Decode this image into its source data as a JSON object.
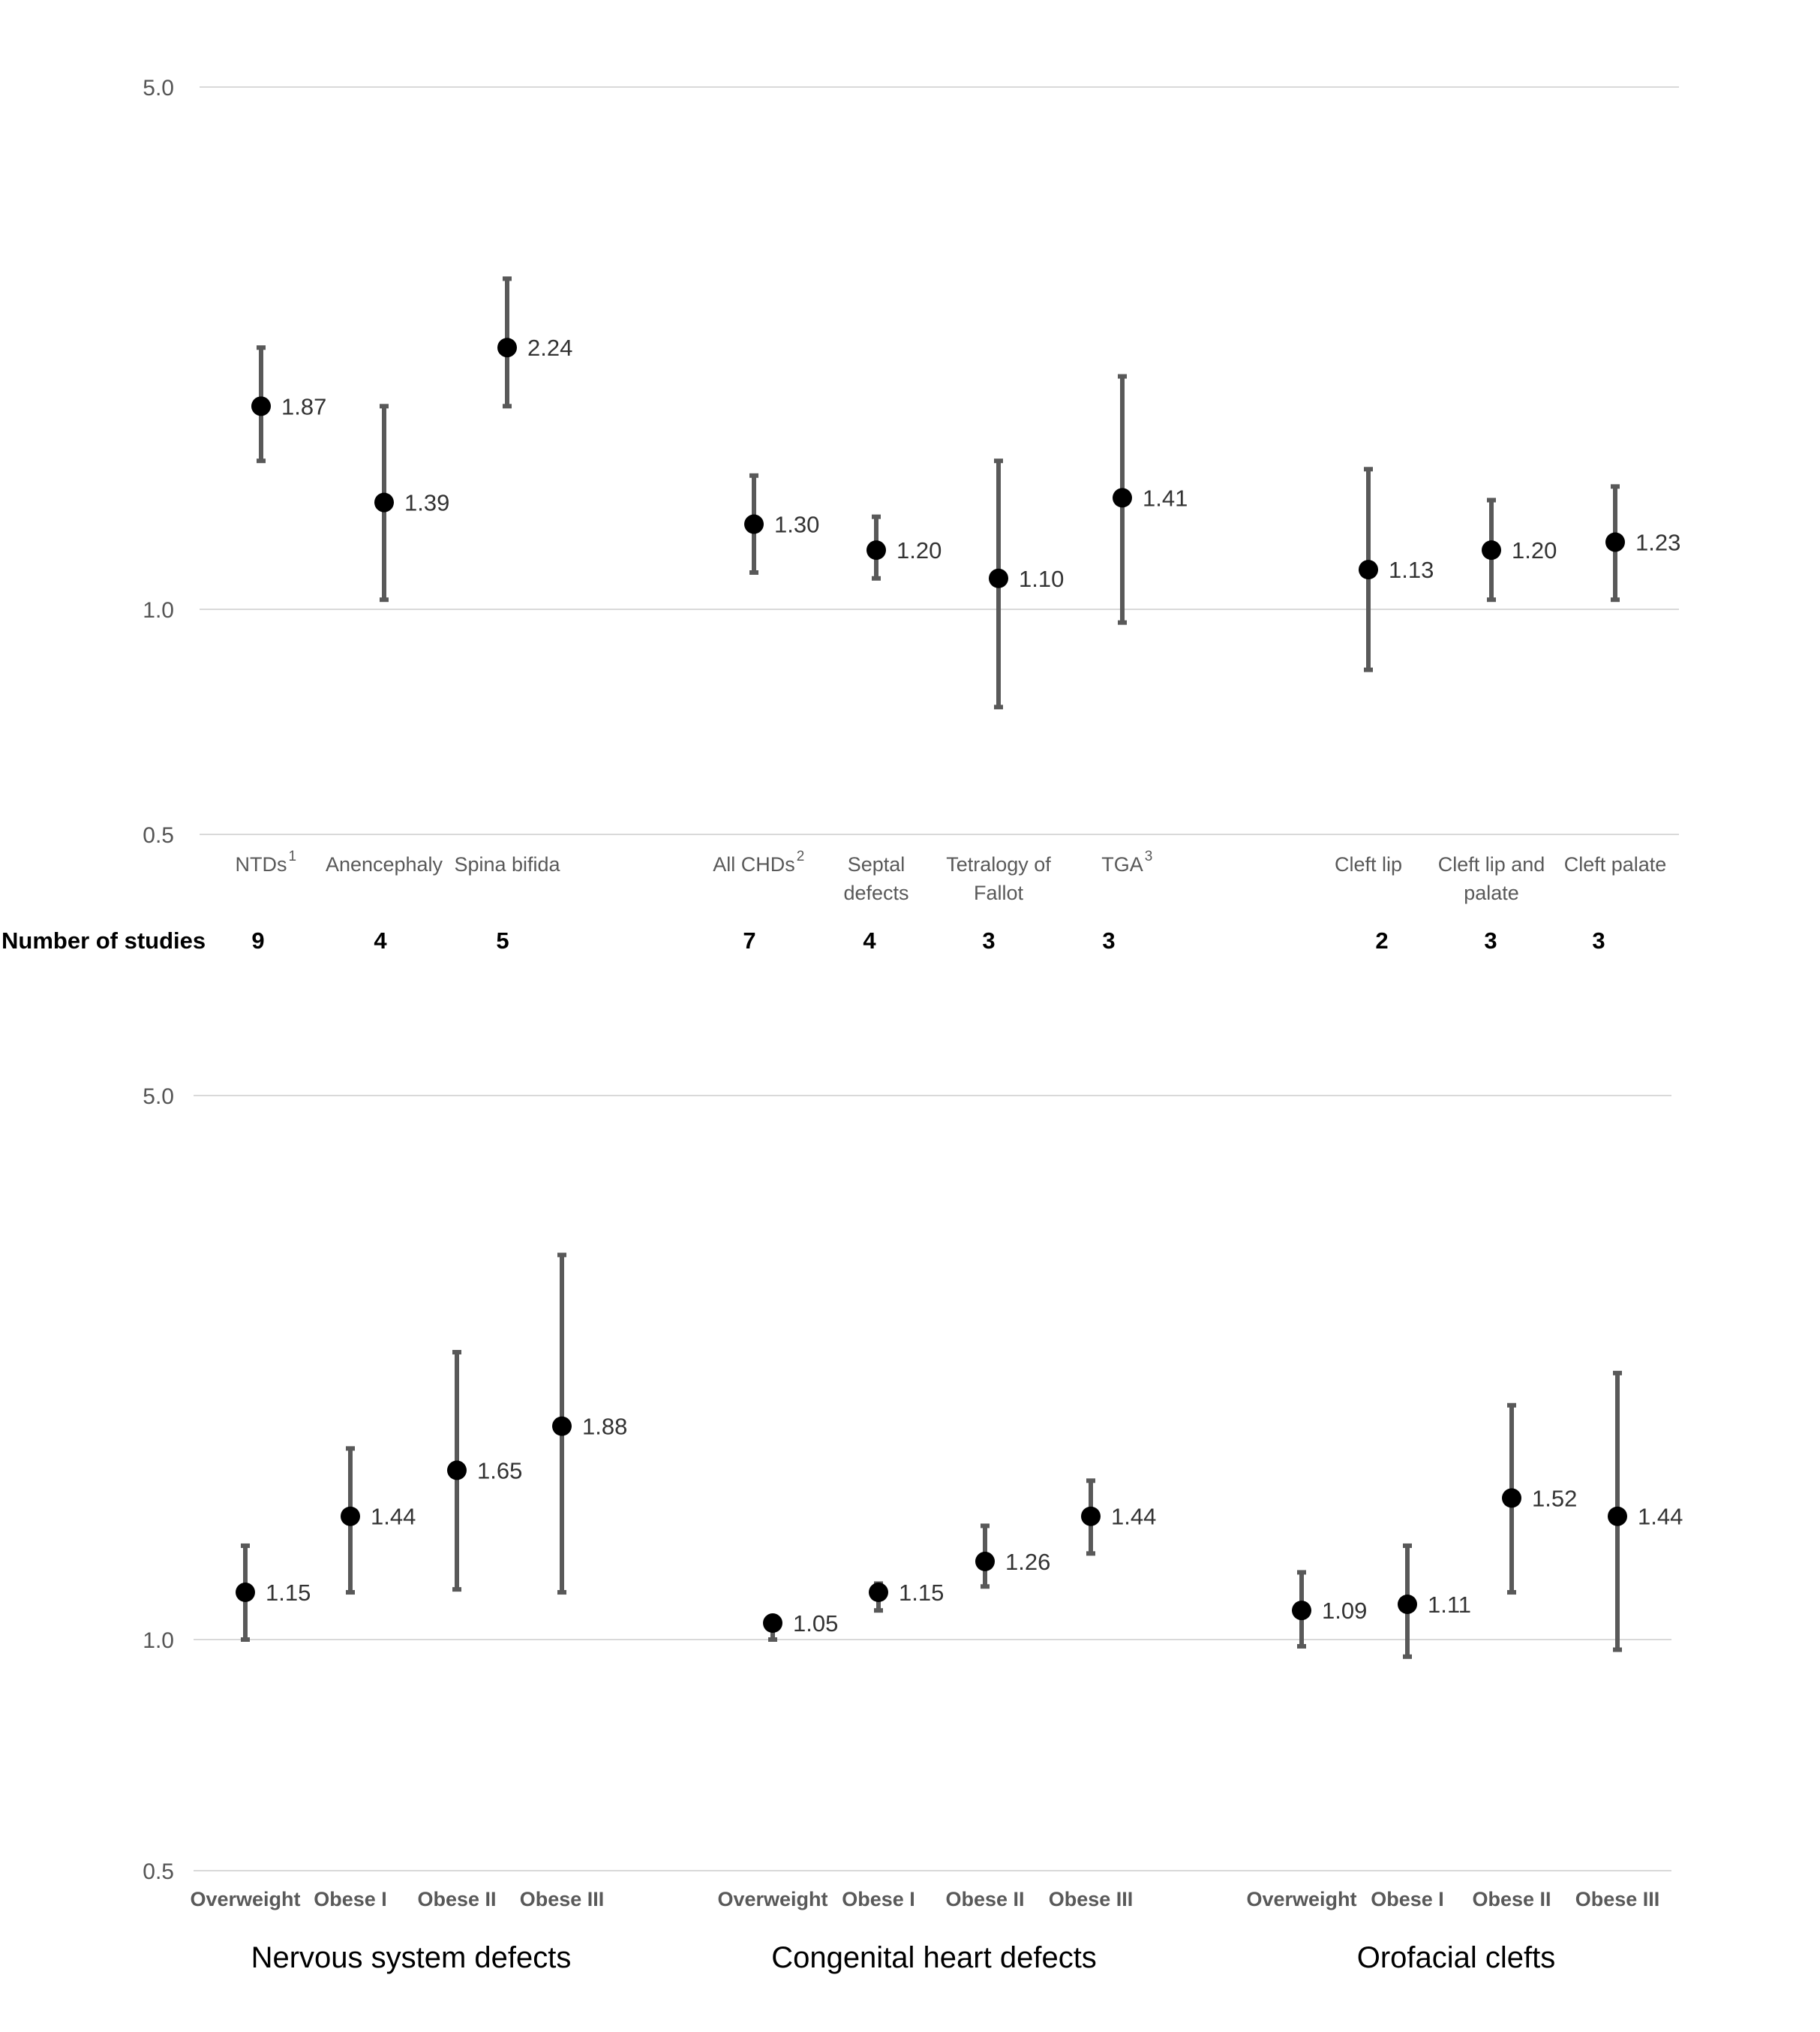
{
  "chart_data": [
    {
      "type": "scatter",
      "description_of_axis": "log",
      "yscale": "log",
      "ylim": [
        0.5,
        5.0
      ],
      "yticks": [
        "5.0",
        "1.0",
        "0.5"
      ],
      "grid": true,
      "row_header": "Number of studies",
      "points": [
        {
          "label": "NTDs",
          "sup": "1",
          "value": 1.87,
          "lo": 1.58,
          "hi": 2.24,
          "value_label": "1.87",
          "n": "9"
        },
        {
          "label": "Anencephaly",
          "sup": "",
          "value": 1.39,
          "lo": 1.03,
          "hi": 1.87,
          "value_label": "1.39",
          "n": "4"
        },
        {
          "label": "Spina bifida",
          "sup": "",
          "value": 2.24,
          "lo": 1.87,
          "hi": 2.77,
          "value_label": "2.24",
          "n": "5"
        },
        {
          "label": "All CHDs",
          "sup": "2",
          "value": 1.3,
          "lo": 1.12,
          "hi": 1.51,
          "value_label": "1.30",
          "n": "7"
        },
        {
          "label": "Septal defects",
          "sup": "",
          "value": 1.2,
          "lo": 1.1,
          "hi": 1.33,
          "value_label": "1.20",
          "n": "4"
        },
        {
          "label": "Tetralogy of Fallot",
          "sup": "",
          "value": 1.1,
          "lo": 0.74,
          "hi": 1.58,
          "value_label": "1.10",
          "n": "3"
        },
        {
          "label": "TGA",
          "sup": "3",
          "value": 1.41,
          "lo": 0.96,
          "hi": 2.05,
          "value_label": "1.41",
          "n": "3"
        },
        {
          "label": "Cleft lip",
          "sup": "",
          "value": 1.13,
          "lo": 0.83,
          "hi": 1.54,
          "value_label": "1.13",
          "n": "2"
        },
        {
          "label": "Cleft lip and palate",
          "sup": "",
          "value": 1.2,
          "lo": 1.03,
          "hi": 1.4,
          "value_label": "1.20",
          "n": "3"
        },
        {
          "label": "Cleft palate",
          "sup": "",
          "value": 1.23,
          "lo": 1.03,
          "hi": 1.46,
          "value_label": "1.23",
          "n": "3"
        }
      ]
    },
    {
      "type": "scatter",
      "yscale": "log",
      "ylim": [
        0.5,
        5.0
      ],
      "yticks": [
        "5.0",
        "1.0",
        "0.5"
      ],
      "grid": true,
      "groups": [
        "Nervous system defects",
        "Congenital heart defects",
        "Orofacial clefts"
      ],
      "points": [
        {
          "label": "Overweight",
          "group": 0,
          "value": 1.15,
          "lo": 1.0,
          "hi": 1.32,
          "value_label": "1.15"
        },
        {
          "label": "Obese I",
          "group": 0,
          "value": 1.44,
          "lo": 1.15,
          "hi": 1.76,
          "value_label": "1.44"
        },
        {
          "label": "Obese II",
          "group": 0,
          "value": 1.65,
          "lo": 1.16,
          "hi": 2.34,
          "value_label": "1.65"
        },
        {
          "label": "Obese III",
          "group": 0,
          "value": 1.88,
          "lo": 1.15,
          "hi": 3.12,
          "value_label": "1.88"
        },
        {
          "label": "Overweight",
          "group": 1,
          "value": 1.05,
          "lo": 1.0,
          "hi": 1.07,
          "value_label": "1.05"
        },
        {
          "label": "Obese I",
          "group": 1,
          "value": 1.15,
          "lo": 1.09,
          "hi": 1.18,
          "value_label": "1.15"
        },
        {
          "label": "Obese II",
          "group": 1,
          "value": 1.26,
          "lo": 1.17,
          "hi": 1.4,
          "value_label": "1.26"
        },
        {
          "label": "Obese III",
          "group": 1,
          "value": 1.44,
          "lo": 1.29,
          "hi": 1.6,
          "value_label": "1.44"
        },
        {
          "label": "Overweight",
          "group": 2,
          "value": 1.09,
          "lo": 0.98,
          "hi": 1.22,
          "value_label": "1.09"
        },
        {
          "label": "Obese I",
          "group": 2,
          "value": 1.11,
          "lo": 0.95,
          "hi": 1.32,
          "value_label": "1.11"
        },
        {
          "label": "Obese II",
          "group": 2,
          "value": 1.52,
          "lo": 1.15,
          "hi": 2.0,
          "value_label": "1.52"
        },
        {
          "label": "Obese III",
          "group": 2,
          "value": 1.44,
          "lo": 0.97,
          "hi": 2.2,
          "value_label": "1.44"
        }
      ]
    }
  ]
}
